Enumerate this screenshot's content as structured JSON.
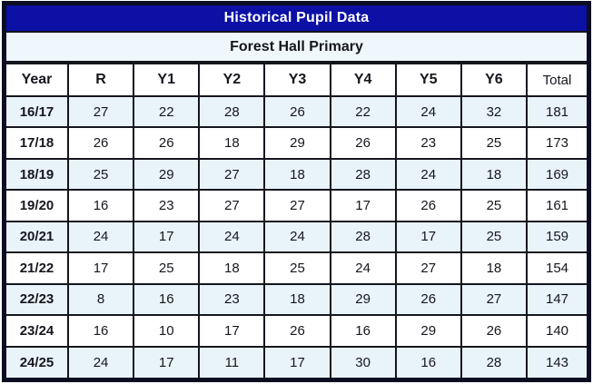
{
  "title": "Historical Pupil Data",
  "subtitle": "Forest Hall Primary",
  "colors": {
    "title_bg": "#0c10a5",
    "title_text": "#ffffff",
    "row_alt_bg": "#e9f3fa",
    "row_bg": "#ffffff",
    "subtitle_bg": "#eff7fc",
    "border": "#15151f",
    "frame": "#0d0d22",
    "text": "#16161e"
  },
  "chart_data": {
    "type": "table",
    "title": "Historical Pupil Data",
    "subtitle": "Forest Hall Primary",
    "columns": [
      "Year",
      "R",
      "Y1",
      "Y2",
      "Y3",
      "Y4",
      "Y5",
      "Y6",
      "Total"
    ],
    "rows": [
      [
        "16/17",
        "27",
        "22",
        "28",
        "26",
        "22",
        "24",
        "32",
        "181"
      ],
      [
        "17/18",
        "26",
        "26",
        "18",
        "29",
        "26",
        "23",
        "25",
        "173"
      ],
      [
        "18/19",
        "25",
        "29",
        "27",
        "18",
        "28",
        "24",
        "18",
        "169"
      ],
      [
        "19/20",
        "16",
        "23",
        "27",
        "27",
        "17",
        "26",
        "25",
        "161"
      ],
      [
        "20/21",
        "24",
        "17",
        "24",
        "24",
        "28",
        "17",
        "25",
        "159"
      ],
      [
        "21/22",
        "17",
        "25",
        "18",
        "25",
        "24",
        "27",
        "18",
        "154"
      ],
      [
        "22/23",
        "8",
        "16",
        "23",
        "18",
        "29",
        "26",
        "27",
        "147"
      ],
      [
        "23/24",
        "16",
        "10",
        "17",
        "26",
        "16",
        "29",
        "26",
        "140"
      ],
      [
        "24/25",
        "24",
        "17",
        "11",
        "17",
        "30",
        "16",
        "28",
        "143"
      ]
    ]
  }
}
